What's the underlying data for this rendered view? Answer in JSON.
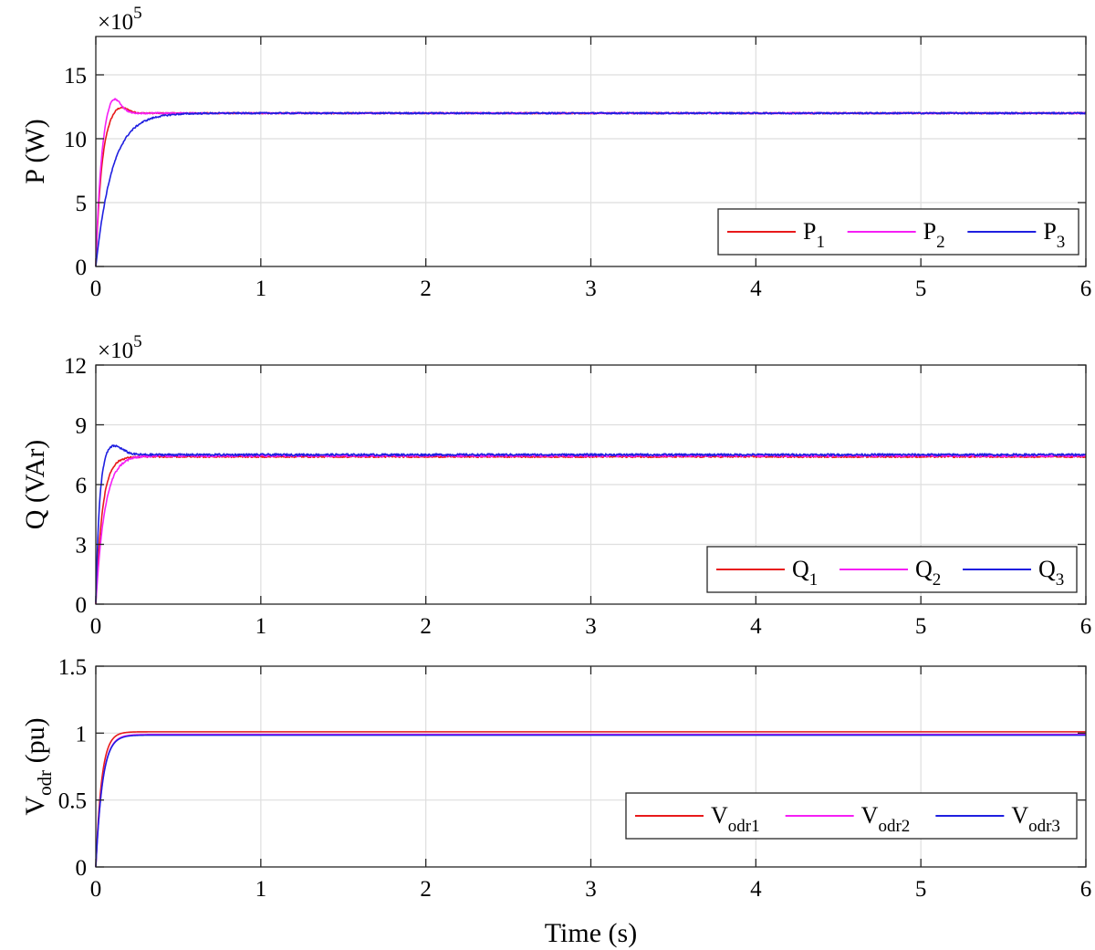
{
  "chart_data": [
    {
      "type": "line",
      "ylabel": "P (W)",
      "multiplier": {
        "base": "×10",
        "exponent": "5"
      },
      "xlim": [
        0,
        6
      ],
      "ylim": [
        0,
        18
      ],
      "xticks": [
        "0",
        "1",
        "2",
        "3",
        "4",
        "5",
        "6"
      ],
      "yticks": [
        "0",
        "5",
        "10",
        "15"
      ],
      "ytick_values": [
        0,
        5,
        10,
        15
      ],
      "grid": true,
      "legend_position": "bottom-right",
      "series": [
        {
          "name": "P",
          "sub": "1",
          "color": "#e8191b",
          "final": 12.0,
          "tau": 0.035,
          "peak": 0.6,
          "peak_t": 0.14,
          "peak_w": 0.07,
          "noise": 0.05
        },
        {
          "name": "P",
          "sub": "2",
          "color": "#f51ff5",
          "final": 12.0,
          "tau": 0.032,
          "peak": 1.5,
          "peak_t": 0.1,
          "peak_w": 0.065,
          "noise": 0.05
        },
        {
          "name": "P",
          "sub": "3",
          "color": "#1f1fe0",
          "final": 12.0,
          "tau": 0.1,
          "peak": 0,
          "peak_t": 0,
          "peak_w": 0,
          "noise": 0.06
        }
      ]
    },
    {
      "type": "line",
      "ylabel": "Q (VAr)",
      "multiplier": {
        "base": "×10",
        "exponent": "5"
      },
      "xlim": [
        0,
        6
      ],
      "ylim": [
        0,
        12
      ],
      "xticks": [
        "0",
        "1",
        "2",
        "3",
        "4",
        "5",
        "6"
      ],
      "yticks": [
        "0",
        "3",
        "6",
        "9",
        "12"
      ],
      "ytick_values": [
        0,
        3,
        6,
        9,
        12
      ],
      "grid": true,
      "legend_position": "bottom-right",
      "series": [
        {
          "name": "Q",
          "sub": "1",
          "color": "#e8191b",
          "final": 7.4,
          "tau": 0.04,
          "peak": 0,
          "peak_t": 0,
          "peak_w": 0,
          "noise": 0.04
        },
        {
          "name": "Q",
          "sub": "2",
          "color": "#f51ff5",
          "final": 7.45,
          "tau": 0.055,
          "peak": 0,
          "peak_t": 0,
          "peak_w": 0,
          "noise": 0.05
        },
        {
          "name": "Q",
          "sub": "3",
          "color": "#1f1fe0",
          "final": 7.5,
          "tau": 0.022,
          "peak": 0.5,
          "peak_t": 0.1,
          "peak_w": 0.08,
          "noise": 0.05
        }
      ]
    },
    {
      "type": "line",
      "ylabel": "V",
      "ylabel_sub": "odr",
      "ylabel_suffix": " (pu)",
      "xlabel": "Time (s)",
      "xlim": [
        0,
        6
      ],
      "ylim": [
        0,
        1.5
      ],
      "xticks": [
        "0",
        "1",
        "2",
        "3",
        "4",
        "5",
        "6"
      ],
      "yticks": [
        "0",
        "0.5",
        "1",
        "1.5"
      ],
      "ytick_values": [
        0,
        0.5,
        1,
        1.5
      ],
      "grid": true,
      "legend_position": "bottom-right",
      "series": [
        {
          "name": "V",
          "sub": "odr1",
          "color": "#e8191b",
          "final": 1.01,
          "tau": 0.035,
          "peak": 0,
          "peak_t": 0,
          "peak_w": 0,
          "noise": 0
        },
        {
          "name": "V",
          "sub": "odr2",
          "color": "#f51ff5",
          "final": 0.99,
          "tau": 0.04,
          "peak": 0,
          "peak_t": 0,
          "peak_w": 0,
          "noise": 0
        },
        {
          "name": "V",
          "sub": "odr3",
          "color": "#1f1fe0",
          "final": 0.985,
          "tau": 0.04,
          "peak": 0,
          "peak_t": 0,
          "peak_w": 0,
          "noise": 0
        }
      ]
    }
  ]
}
